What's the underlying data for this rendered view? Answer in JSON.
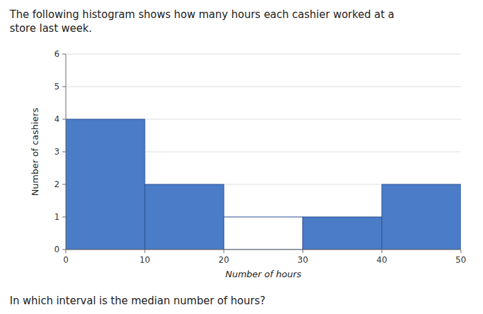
{
  "chart_data": {
    "type": "histogram",
    "title": "The following histogram shows how many hours each cashier worked at a\nstore last week.",
    "annotations": [
      "In which interval is the median number of hours?"
    ],
    "bins": [
      0,
      10,
      20,
      30,
      40,
      50
    ],
    "values": [
      4,
      2,
      1,
      1,
      2
    ],
    "colors": [
      "#4a7cc7",
      "#4a7cc7",
      "#ffffff",
      "#4a7cc7",
      "#4a7cc7"
    ],
    "x_label": "Number of hours",
    "y_label": "Number of cashiers",
    "xlim": [
      0,
      50
    ],
    "ylim": [
      0,
      6
    ],
    "xticks": [
      0,
      10,
      20,
      30,
      40,
      50
    ],
    "yticks": [
      0,
      1,
      2,
      3,
      4,
      5,
      6
    ],
    "grid": true
  }
}
